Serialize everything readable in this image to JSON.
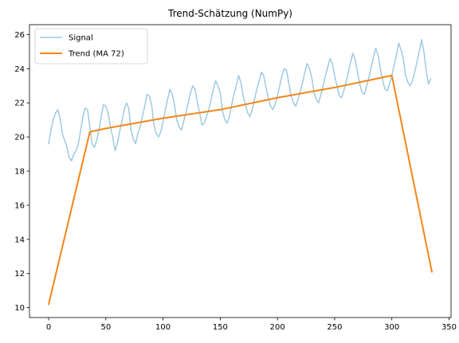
{
  "chart_data": {
    "type": "line",
    "title": "Trend-Schätzung (NumPy)",
    "xlabel": "",
    "ylabel": "",
    "xlim": [
      -16.75,
      351.75
    ],
    "ylim": [
      9.42,
      26.58
    ],
    "x_ticks": [
      0,
      50,
      100,
      150,
      200,
      250,
      300,
      350
    ],
    "y_ticks": [
      10,
      12,
      14,
      16,
      18,
      20,
      22,
      24,
      26
    ],
    "x_tick_labels": [
      "0",
      "50",
      "100",
      "150",
      "200",
      "250",
      "300",
      "350"
    ],
    "y_tick_labels": [
      "10",
      "12",
      "14",
      "16",
      "18",
      "20",
      "22",
      "24",
      "26"
    ],
    "grid": false,
    "legend_position": "upper left",
    "series": [
      {
        "name": "Signal",
        "color": "#9ecae1",
        "x": [
          0,
          2,
          4,
          6,
          8,
          10,
          12,
          14,
          16,
          18,
          20,
          22,
          24,
          26,
          28,
          30,
          32,
          34,
          36,
          38,
          40,
          42,
          44,
          46,
          48,
          50,
          52,
          54,
          56,
          58,
          60,
          62,
          64,
          66,
          68,
          70,
          72,
          74,
          76,
          78,
          80,
          82,
          84,
          86,
          88,
          90,
          92,
          94,
          96,
          98,
          100,
          102,
          104,
          106,
          108,
          110,
          112,
          114,
          116,
          118,
          120,
          122,
          124,
          126,
          128,
          130,
          132,
          134,
          136,
          138,
          140,
          142,
          144,
          146,
          148,
          150,
          152,
          154,
          156,
          158,
          160,
          162,
          164,
          166,
          168,
          170,
          172,
          174,
          176,
          178,
          180,
          182,
          184,
          186,
          188,
          190,
          192,
          194,
          196,
          198,
          200,
          202,
          204,
          206,
          208,
          210,
          212,
          214,
          216,
          218,
          220,
          222,
          224,
          226,
          228,
          230,
          232,
          234,
          236,
          238,
          240,
          242,
          244,
          246,
          248,
          250,
          252,
          254,
          256,
          258,
          260,
          262,
          264,
          266,
          268,
          270,
          272,
          274,
          276,
          278,
          280,
          282,
          284,
          286,
          288,
          290,
          292,
          294,
          296,
          298,
          300,
          302,
          304,
          306,
          308,
          310,
          312,
          314,
          316,
          318,
          320,
          322,
          324,
          326,
          328,
          330,
          332,
          334
        ],
        "values": [
          19.6,
          20.4,
          21.0,
          21.4,
          21.6,
          21.1,
          20.2,
          19.8,
          19.4,
          18.8,
          18.6,
          19.0,
          19.2,
          19.6,
          20.4,
          21.2,
          21.7,
          21.6,
          20.6,
          19.6,
          19.4,
          19.8,
          20.4,
          21.2,
          21.9,
          21.8,
          21.4,
          20.6,
          20.0,
          19.2,
          19.6,
          20.3,
          20.9,
          21.6,
          22.0,
          21.7,
          20.4,
          19.9,
          19.6,
          20.2,
          20.6,
          21.2,
          21.8,
          22.5,
          22.4,
          21.9,
          20.7,
          20.2,
          20.0,
          20.3,
          20.9,
          21.6,
          22.2,
          22.8,
          22.5,
          21.9,
          21.0,
          20.6,
          20.4,
          20.9,
          21.4,
          22.0,
          22.6,
          23.0,
          22.8,
          22.0,
          21.4,
          20.7,
          20.8,
          21.2,
          21.6,
          22.2,
          22.8,
          23.3,
          23.0,
          22.6,
          21.5,
          21.0,
          20.8,
          21.2,
          21.9,
          22.5,
          23.0,
          23.6,
          23.2,
          22.4,
          21.9,
          21.4,
          21.2,
          21.6,
          22.2,
          22.8,
          23.3,
          23.8,
          23.6,
          22.9,
          22.3,
          21.8,
          21.6,
          21.9,
          22.4,
          23.0,
          23.6,
          24.0,
          23.9,
          23.1,
          22.4,
          22.0,
          21.8,
          22.2,
          22.7,
          23.2,
          23.8,
          24.3,
          24.0,
          23.5,
          22.6,
          22.2,
          22.0,
          22.5,
          23.0,
          23.6,
          24.1,
          24.6,
          24.3,
          23.6,
          23.0,
          22.4,
          22.3,
          22.7,
          23.2,
          23.8,
          24.4,
          24.9,
          24.5,
          23.8,
          23.1,
          22.6,
          22.5,
          23.0,
          23.5,
          24.1,
          24.7,
          25.2,
          24.8,
          24.0,
          23.3,
          22.8,
          22.7,
          23.1,
          23.6,
          24.2,
          24.8,
          25.5,
          25.1,
          24.6,
          23.6,
          23.2,
          23.0,
          23.3,
          23.8,
          24.4,
          25.0,
          25.7,
          25.0,
          23.9,
          23.1,
          23.4
        ]
      },
      {
        "name": "Trend (MA 72)",
        "color": "#f58518",
        "x": [
          0,
          36,
          50,
          100,
          150,
          200,
          250,
          300,
          335
        ],
        "values": [
          10.2,
          20.3,
          20.5,
          21.1,
          21.6,
          22.3,
          22.9,
          23.6,
          12.1
        ]
      }
    ]
  }
}
